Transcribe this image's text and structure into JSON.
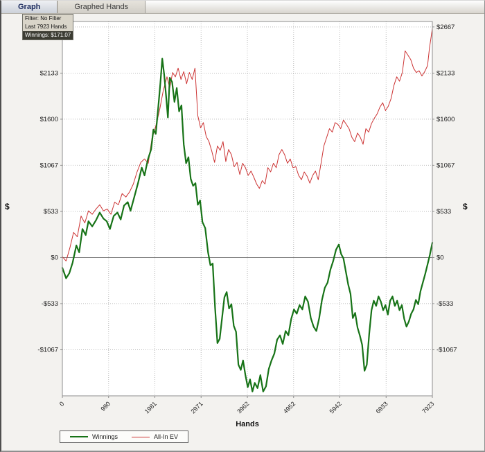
{
  "tabs": [
    {
      "label": "Graph",
      "active": true
    },
    {
      "label": "Graphed Hands",
      "active": false
    }
  ],
  "info_box": {
    "filter": "Filter: No Filter",
    "hands": "Last 7923 Hands",
    "winnings": "Winnings: $171.07"
  },
  "chart_data": {
    "type": "line",
    "title": "",
    "xlabel": "Hands",
    "ylabel_left": "$",
    "ylabel_right": "$",
    "xlim": [
      0,
      7923
    ],
    "ylim": [
      -1600,
      2730
    ],
    "grid": true,
    "zero_line": true,
    "legend_position": "bottom-left",
    "x_ticks": [
      {
        "v": 0,
        "label": "0"
      },
      {
        "v": 990,
        "label": "990"
      },
      {
        "v": 1981,
        "label": "1981"
      },
      {
        "v": 2971,
        "label": "2971"
      },
      {
        "v": 3962,
        "label": "3962"
      },
      {
        "v": 4952,
        "label": "4952"
      },
      {
        "v": 5942,
        "label": "5942"
      },
      {
        "v": 6933,
        "label": "6933"
      },
      {
        "v": 7923,
        "label": "7923"
      }
    ],
    "y_ticks": [
      {
        "v": 2667,
        "label": "$2667"
      },
      {
        "v": 2133,
        "label": "$2133"
      },
      {
        "v": 1600,
        "label": "$1600"
      },
      {
        "v": 1067,
        "label": "$1067"
      },
      {
        "v": 533,
        "label": "$533"
      },
      {
        "v": 0,
        "label": "$0"
      },
      {
        "v": -533,
        "label": "-$533"
      },
      {
        "v": -1067,
        "label": "-$1067"
      }
    ],
    "colors": {
      "grid": "#bbbbbb",
      "zero_line": "#808080",
      "plot_border": "#8c8c8c",
      "plot_bg": "#ffffff"
    },
    "series": [
      {
        "name": "Winnings",
        "color": "#177317",
        "width": 2.2,
        "points": [
          [
            0,
            -120
          ],
          [
            80,
            -240
          ],
          [
            150,
            -180
          ],
          [
            220,
            -60
          ],
          [
            300,
            140
          ],
          [
            360,
            60
          ],
          [
            430,
            330
          ],
          [
            500,
            260
          ],
          [
            560,
            420
          ],
          [
            640,
            360
          ],
          [
            720,
            430
          ],
          [
            800,
            520
          ],
          [
            880,
            450
          ],
          [
            950,
            420
          ],
          [
            1020,
            330
          ],
          [
            1100,
            480
          ],
          [
            1180,
            520
          ],
          [
            1250,
            440
          ],
          [
            1320,
            600
          ],
          [
            1400,
            640
          ],
          [
            1460,
            540
          ],
          [
            1540,
            700
          ],
          [
            1620,
            860
          ],
          [
            1700,
            1040
          ],
          [
            1760,
            950
          ],
          [
            1830,
            1130
          ],
          [
            1900,
            1250
          ],
          [
            1950,
            1480
          ],
          [
            2000,
            1430
          ],
          [
            2050,
            1720
          ],
          [
            2100,
            2020
          ],
          [
            2140,
            2300
          ],
          [
            2180,
            2120
          ],
          [
            2220,
            1880
          ],
          [
            2260,
            1620
          ],
          [
            2300,
            2080
          ],
          [
            2350,
            2030
          ],
          [
            2400,
            1800
          ],
          [
            2450,
            1960
          ],
          [
            2500,
            1690
          ],
          [
            2550,
            1760
          ],
          [
            2600,
            1310
          ],
          [
            2650,
            1090
          ],
          [
            2700,
            1160
          ],
          [
            2750,
            910
          ],
          [
            2800,
            830
          ],
          [
            2850,
            860
          ],
          [
            2900,
            610
          ],
          [
            2950,
            660
          ],
          [
            3000,
            410
          ],
          [
            3060,
            340
          ],
          [
            3120,
            60
          ],
          [
            3170,
            -90
          ],
          [
            3220,
            -70
          ],
          [
            3270,
            -580
          ],
          [
            3320,
            -990
          ],
          [
            3370,
            -940
          ],
          [
            3420,
            -700
          ],
          [
            3470,
            -460
          ],
          [
            3520,
            -400
          ],
          [
            3570,
            -590
          ],
          [
            3620,
            -540
          ],
          [
            3670,
            -790
          ],
          [
            3720,
            -860
          ],
          [
            3770,
            -1240
          ],
          [
            3820,
            -1300
          ],
          [
            3870,
            -1190
          ],
          [
            3920,
            -1360
          ],
          [
            3970,
            -1500
          ],
          [
            4020,
            -1410
          ],
          [
            4070,
            -1550
          ],
          [
            4120,
            -1450
          ],
          [
            4180,
            -1510
          ],
          [
            4240,
            -1360
          ],
          [
            4300,
            -1550
          ],
          [
            4360,
            -1490
          ],
          [
            4420,
            -1290
          ],
          [
            4480,
            -1190
          ],
          [
            4540,
            -1110
          ],
          [
            4600,
            -950
          ],
          [
            4660,
            -900
          ],
          [
            4720,
            -1000
          ],
          [
            4780,
            -850
          ],
          [
            4840,
            -900
          ],
          [
            4900,
            -710
          ],
          [
            4960,
            -600
          ],
          [
            5020,
            -650
          ],
          [
            5080,
            -550
          ],
          [
            5140,
            -600
          ],
          [
            5200,
            -450
          ],
          [
            5260,
            -510
          ],
          [
            5320,
            -700
          ],
          [
            5380,
            -800
          ],
          [
            5440,
            -850
          ],
          [
            5500,
            -700
          ],
          [
            5560,
            -490
          ],
          [
            5620,
            -350
          ],
          [
            5680,
            -290
          ],
          [
            5740,
            -140
          ],
          [
            5800,
            -40
          ],
          [
            5860,
            90
          ],
          [
            5920,
            150
          ],
          [
            5970,
            40
          ],
          [
            6020,
            -10
          ],
          [
            6070,
            -160
          ],
          [
            6120,
            -310
          ],
          [
            6170,
            -420
          ],
          [
            6220,
            -700
          ],
          [
            6270,
            -640
          ],
          [
            6320,
            -810
          ],
          [
            6370,
            -900
          ],
          [
            6420,
            -1010
          ],
          [
            6470,
            -1310
          ],
          [
            6520,
            -1240
          ],
          [
            6570,
            -890
          ],
          [
            6620,
            -610
          ],
          [
            6670,
            -500
          ],
          [
            6720,
            -560
          ],
          [
            6770,
            -450
          ],
          [
            6820,
            -510
          ],
          [
            6870,
            -610
          ],
          [
            6920,
            -550
          ],
          [
            6970,
            -660
          ],
          [
            7020,
            -500
          ],
          [
            7070,
            -450
          ],
          [
            7120,
            -560
          ],
          [
            7170,
            -500
          ],
          [
            7220,
            -610
          ],
          [
            7270,
            -550
          ],
          [
            7320,
            -710
          ],
          [
            7370,
            -800
          ],
          [
            7420,
            -740
          ],
          [
            7470,
            -650
          ],
          [
            7520,
            -600
          ],
          [
            7570,
            -490
          ],
          [
            7620,
            -540
          ],
          [
            7670,
            -390
          ],
          [
            7720,
            -290
          ],
          [
            7770,
            -190
          ],
          [
            7820,
            -80
          ],
          [
            7870,
            30
          ],
          [
            7923,
            171
          ]
        ]
      },
      {
        "name": "All-In EV",
        "color": "#cc3333",
        "width": 1,
        "points": [
          [
            0,
            10
          ],
          [
            80,
            -40
          ],
          [
            160,
            110
          ],
          [
            240,
            290
          ],
          [
            320,
            240
          ],
          [
            400,
            480
          ],
          [
            480,
            400
          ],
          [
            560,
            540
          ],
          [
            640,
            500
          ],
          [
            720,
            560
          ],
          [
            800,
            610
          ],
          [
            880,
            540
          ],
          [
            960,
            560
          ],
          [
            1040,
            500
          ],
          [
            1120,
            640
          ],
          [
            1200,
            610
          ],
          [
            1280,
            740
          ],
          [
            1360,
            700
          ],
          [
            1440,
            760
          ],
          [
            1520,
            850
          ],
          [
            1600,
            990
          ],
          [
            1680,
            1100
          ],
          [
            1760,
            1140
          ],
          [
            1840,
            1090
          ],
          [
            1920,
            1380
          ],
          [
            2000,
            1520
          ],
          [
            2080,
            1700
          ],
          [
            2160,
            1930
          ],
          [
            2240,
            2090
          ],
          [
            2300,
            1960
          ],
          [
            2360,
            2140
          ],
          [
            2420,
            2090
          ],
          [
            2480,
            2190
          ],
          [
            2540,
            2060
          ],
          [
            2600,
            2150
          ],
          [
            2660,
            2010
          ],
          [
            2720,
            2140
          ],
          [
            2780,
            2060
          ],
          [
            2840,
            2190
          ],
          [
            2900,
            1640
          ],
          [
            2960,
            1500
          ],
          [
            3020,
            1560
          ],
          [
            3080,
            1400
          ],
          [
            3140,
            1340
          ],
          [
            3200,
            1230
          ],
          [
            3260,
            1100
          ],
          [
            3320,
            1290
          ],
          [
            3380,
            1240
          ],
          [
            3440,
            1340
          ],
          [
            3500,
            1110
          ],
          [
            3560,
            1250
          ],
          [
            3620,
            1190
          ],
          [
            3680,
            1050
          ],
          [
            3740,
            1100
          ],
          [
            3800,
            960
          ],
          [
            3860,
            1090
          ],
          [
            3920,
            1040
          ],
          [
            3980,
            950
          ],
          [
            4040,
            1000
          ],
          [
            4100,
            930
          ],
          [
            4160,
            850
          ],
          [
            4220,
            800
          ],
          [
            4280,
            890
          ],
          [
            4340,
            850
          ],
          [
            4400,
            1040
          ],
          [
            4460,
            990
          ],
          [
            4520,
            1090
          ],
          [
            4580,
            1040
          ],
          [
            4640,
            1190
          ],
          [
            4700,
            1250
          ],
          [
            4760,
            1190
          ],
          [
            4820,
            1090
          ],
          [
            4880,
            1140
          ],
          [
            4940,
            1040
          ],
          [
            5000,
            1050
          ],
          [
            5060,
            950
          ],
          [
            5120,
            900
          ],
          [
            5180,
            990
          ],
          [
            5240,
            940
          ],
          [
            5300,
            860
          ],
          [
            5360,
            950
          ],
          [
            5420,
            1000
          ],
          [
            5480,
            900
          ],
          [
            5540,
            1090
          ],
          [
            5600,
            1290
          ],
          [
            5660,
            1390
          ],
          [
            5720,
            1490
          ],
          [
            5780,
            1450
          ],
          [
            5840,
            1560
          ],
          [
            5900,
            1540
          ],
          [
            5960,
            1490
          ],
          [
            6020,
            1590
          ],
          [
            6080,
            1540
          ],
          [
            6140,
            1490
          ],
          [
            6200,
            1390
          ],
          [
            6260,
            1340
          ],
          [
            6320,
            1440
          ],
          [
            6380,
            1390
          ],
          [
            6440,
            1310
          ],
          [
            6500,
            1490
          ],
          [
            6560,
            1450
          ],
          [
            6620,
            1550
          ],
          [
            6680,
            1610
          ],
          [
            6740,
            1660
          ],
          [
            6800,
            1740
          ],
          [
            6860,
            1790
          ],
          [
            6920,
            1700
          ],
          [
            6980,
            1750
          ],
          [
            7040,
            1840
          ],
          [
            7100,
            1990
          ],
          [
            7160,
            2090
          ],
          [
            7220,
            2040
          ],
          [
            7280,
            2140
          ],
          [
            7340,
            2390
          ],
          [
            7400,
            2340
          ],
          [
            7460,
            2290
          ],
          [
            7520,
            2190
          ],
          [
            7580,
            2140
          ],
          [
            7640,
            2160
          ],
          [
            7700,
            2100
          ],
          [
            7760,
            2150
          ],
          [
            7820,
            2220
          ],
          [
            7860,
            2420
          ],
          [
            7900,
            2560
          ],
          [
            7923,
            2650
          ]
        ]
      }
    ]
  }
}
